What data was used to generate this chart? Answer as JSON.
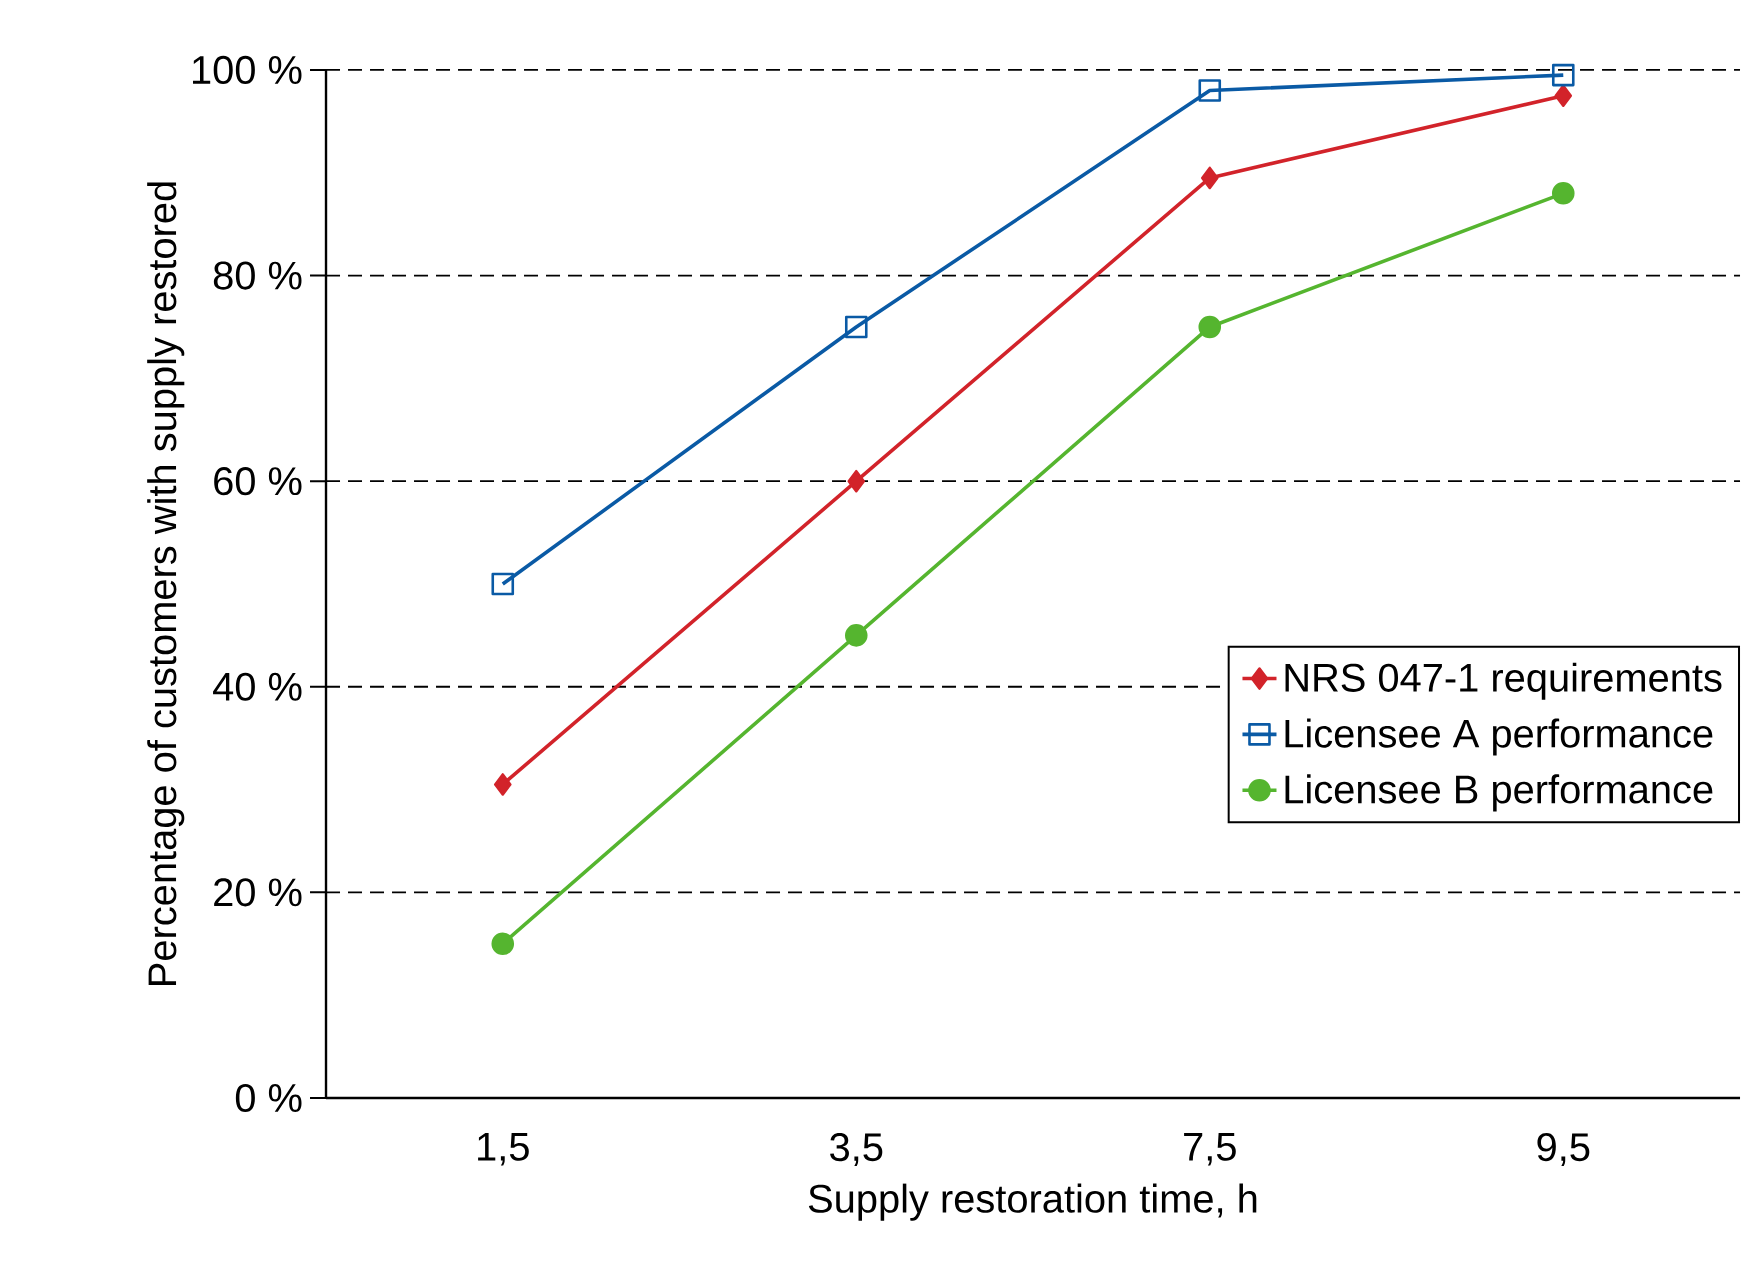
{
  "chart_data": {
    "type": "line",
    "xlabel": "Supply restoration time, h",
    "ylabel": "Percentage of customers with supply restored",
    "categories": [
      "1,5",
      "3,5",
      "7,5",
      "9,5"
    ],
    "series": [
      {
        "name": "NRS 047-1 requirements",
        "color": "#d2232a",
        "marker": "diamond",
        "values": [
          30.5,
          60,
          89.5,
          97.5
        ]
      },
      {
        "name": "Licensee A performance",
        "color": "#0a5aa5",
        "marker": "square",
        "values": [
          50,
          75,
          98,
          99.5
        ]
      },
      {
        "name": "Licensee B performance",
        "color": "#55b52f",
        "marker": "circle",
        "values": [
          15,
          45,
          75,
          88
        ]
      }
    ],
    "ylim": [
      0,
      100
    ],
    "yticks": [
      {
        "value": 0,
        "label": "0 %"
      },
      {
        "value": 20,
        "label": "20 %"
      },
      {
        "value": 40,
        "label": "40 %"
      },
      {
        "value": 60,
        "label": "60 %"
      },
      {
        "value": 80,
        "label": "80 %"
      },
      {
        "value": 100,
        "label": "100 %"
      }
    ],
    "grid": "y",
    "legend": "right",
    "line_style": "solid"
  }
}
